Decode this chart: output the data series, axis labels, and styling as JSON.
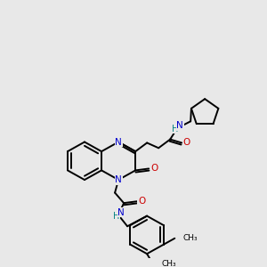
{
  "bg_color": "#e8e8e8",
  "atom_colors": {
    "N": "#0000cc",
    "O": "#cc0000",
    "H": "#008080",
    "C": "#000000"
  },
  "lw": 1.4,
  "fs": 7.5
}
